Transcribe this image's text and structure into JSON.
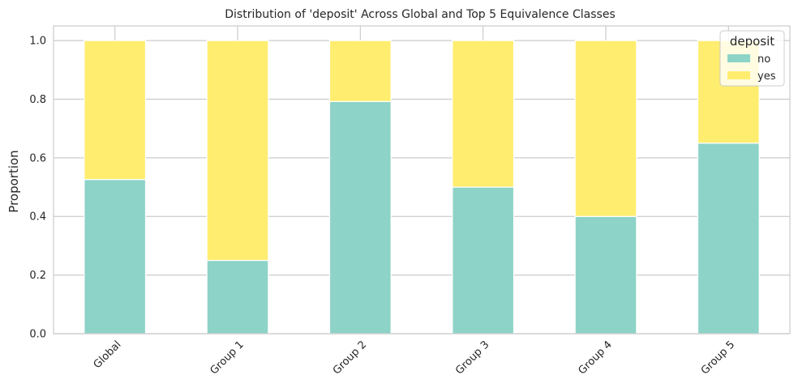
{
  "chart_data": {
    "type": "bar",
    "stacked": true,
    "title": "Distribution of 'deposit' Across Global and Top 5 Equivalence Classes",
    "xlabel": "",
    "ylabel": "Proportion",
    "ylim": [
      0,
      1.05
    ],
    "yticks": [
      0.0,
      0.2,
      0.4,
      0.6,
      0.8,
      1.0
    ],
    "ytick_labels": [
      "0.0",
      "0.2",
      "0.4",
      "0.6",
      "0.8",
      "1.0"
    ],
    "categories": [
      "Global",
      "Group 1",
      "Group 2",
      "Group 3",
      "Group 4",
      "Group 5"
    ],
    "series": [
      {
        "name": "no",
        "color": "#8dd3c7",
        "values": [
          0.526,
          0.25,
          0.792,
          0.5,
          0.4,
          0.65
        ]
      },
      {
        "name": "yes",
        "color": "#ffed6f",
        "values": [
          0.474,
          0.75,
          0.208,
          0.5,
          0.6,
          0.35
        ]
      }
    ],
    "legend": {
      "title": "deposit",
      "position": "top-right"
    },
    "grid": true
  }
}
